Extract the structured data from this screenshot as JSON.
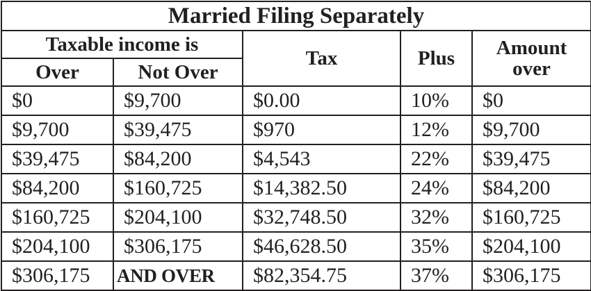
{
  "table": {
    "title": "Married Filing Separately",
    "headers": {
      "taxable_income": "Taxable income is",
      "over": "Over",
      "not_over": "Not Over",
      "tax": "Tax",
      "plus": "Plus",
      "amount_over_line1": "Amount",
      "amount_over_line2": "over"
    },
    "rows": [
      {
        "over": "$0",
        "not_over": "$9,700",
        "tax": "$0.00",
        "plus": "10%",
        "amount_over": "$0"
      },
      {
        "over": "$9,700",
        "not_over": "$39,475",
        "tax": "$970",
        "plus": "12%",
        "amount_over": "$9,700"
      },
      {
        "over": "$39,475",
        "not_over": "$84,200",
        "tax": "$4,543",
        "plus": "22%",
        "amount_over": "$39,475"
      },
      {
        "over": "$84,200",
        "not_over": "$160,725",
        "tax": "$14,382.50",
        "plus": "24%",
        "amount_over": "$84,200"
      },
      {
        "over": "$160,725",
        "not_over": "$204,100",
        "tax": "$32,748.50",
        "plus": "32%",
        "amount_over": "$160,725"
      },
      {
        "over": "$204,100",
        "not_over": "$306,175",
        "tax": "$46,628.50",
        "plus": "35%",
        "amount_over": "$204,100"
      },
      {
        "over": "$306,175",
        "not_over": "AND OVER",
        "tax": "$82,354.75",
        "plus": "37%",
        "amount_over": "$306,175"
      }
    ]
  }
}
